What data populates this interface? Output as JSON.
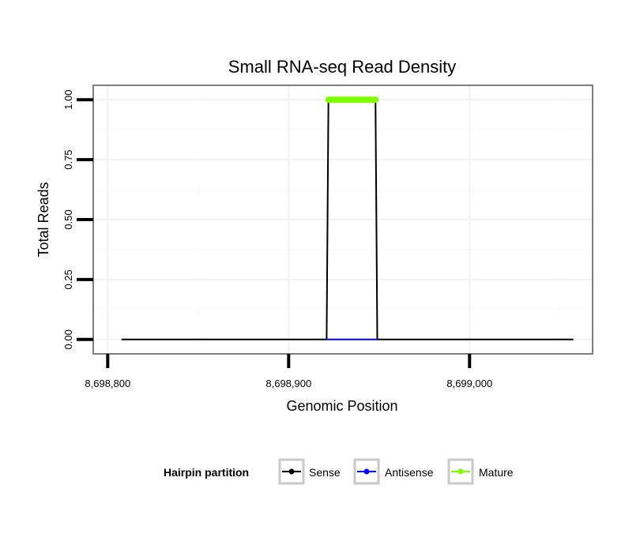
{
  "chart_data": {
    "type": "line",
    "title": "Small RNA-seq Read Density",
    "xlabel": "Genomic Position",
    "ylabel": "Total Reads",
    "xlim": [
      8698792,
      8699068
    ],
    "ylim": [
      -0.06,
      1.06
    ],
    "x_ticks": [
      {
        "value": 8698800,
        "label": "8,698,800"
      },
      {
        "value": 8698900,
        "label": "8,698,900"
      },
      {
        "value": 8699000,
        "label": "8,699,000"
      }
    ],
    "y_ticks": [
      {
        "value": 0,
        "label": "0.00"
      },
      {
        "value": 0.25,
        "label": "0.25"
      },
      {
        "value": 0.5,
        "label": "0.50"
      },
      {
        "value": 0.75,
        "label": "0.75"
      },
      {
        "value": 1.0,
        "label": "1.00"
      }
    ],
    "grid": true,
    "legend": {
      "title": "Hairpin partition",
      "position": "bottom"
    },
    "series": [
      {
        "name": "Sense",
        "color": "#000000",
        "points": [
          [
            8698808,
            0
          ],
          [
            8698921,
            0
          ],
          [
            8698922,
            1
          ],
          [
            8698948,
            1
          ],
          [
            8698949,
            0
          ],
          [
            8699057,
            0
          ]
        ]
      },
      {
        "name": "Antisense",
        "color": "#0000ff",
        "points": [
          [
            8698921,
            0
          ],
          [
            8698949,
            0
          ]
        ]
      },
      {
        "name": "Mature",
        "color": "#7fff00",
        "points": [
          [
            8698922,
            1
          ],
          [
            8698948,
            1
          ]
        ]
      }
    ]
  }
}
